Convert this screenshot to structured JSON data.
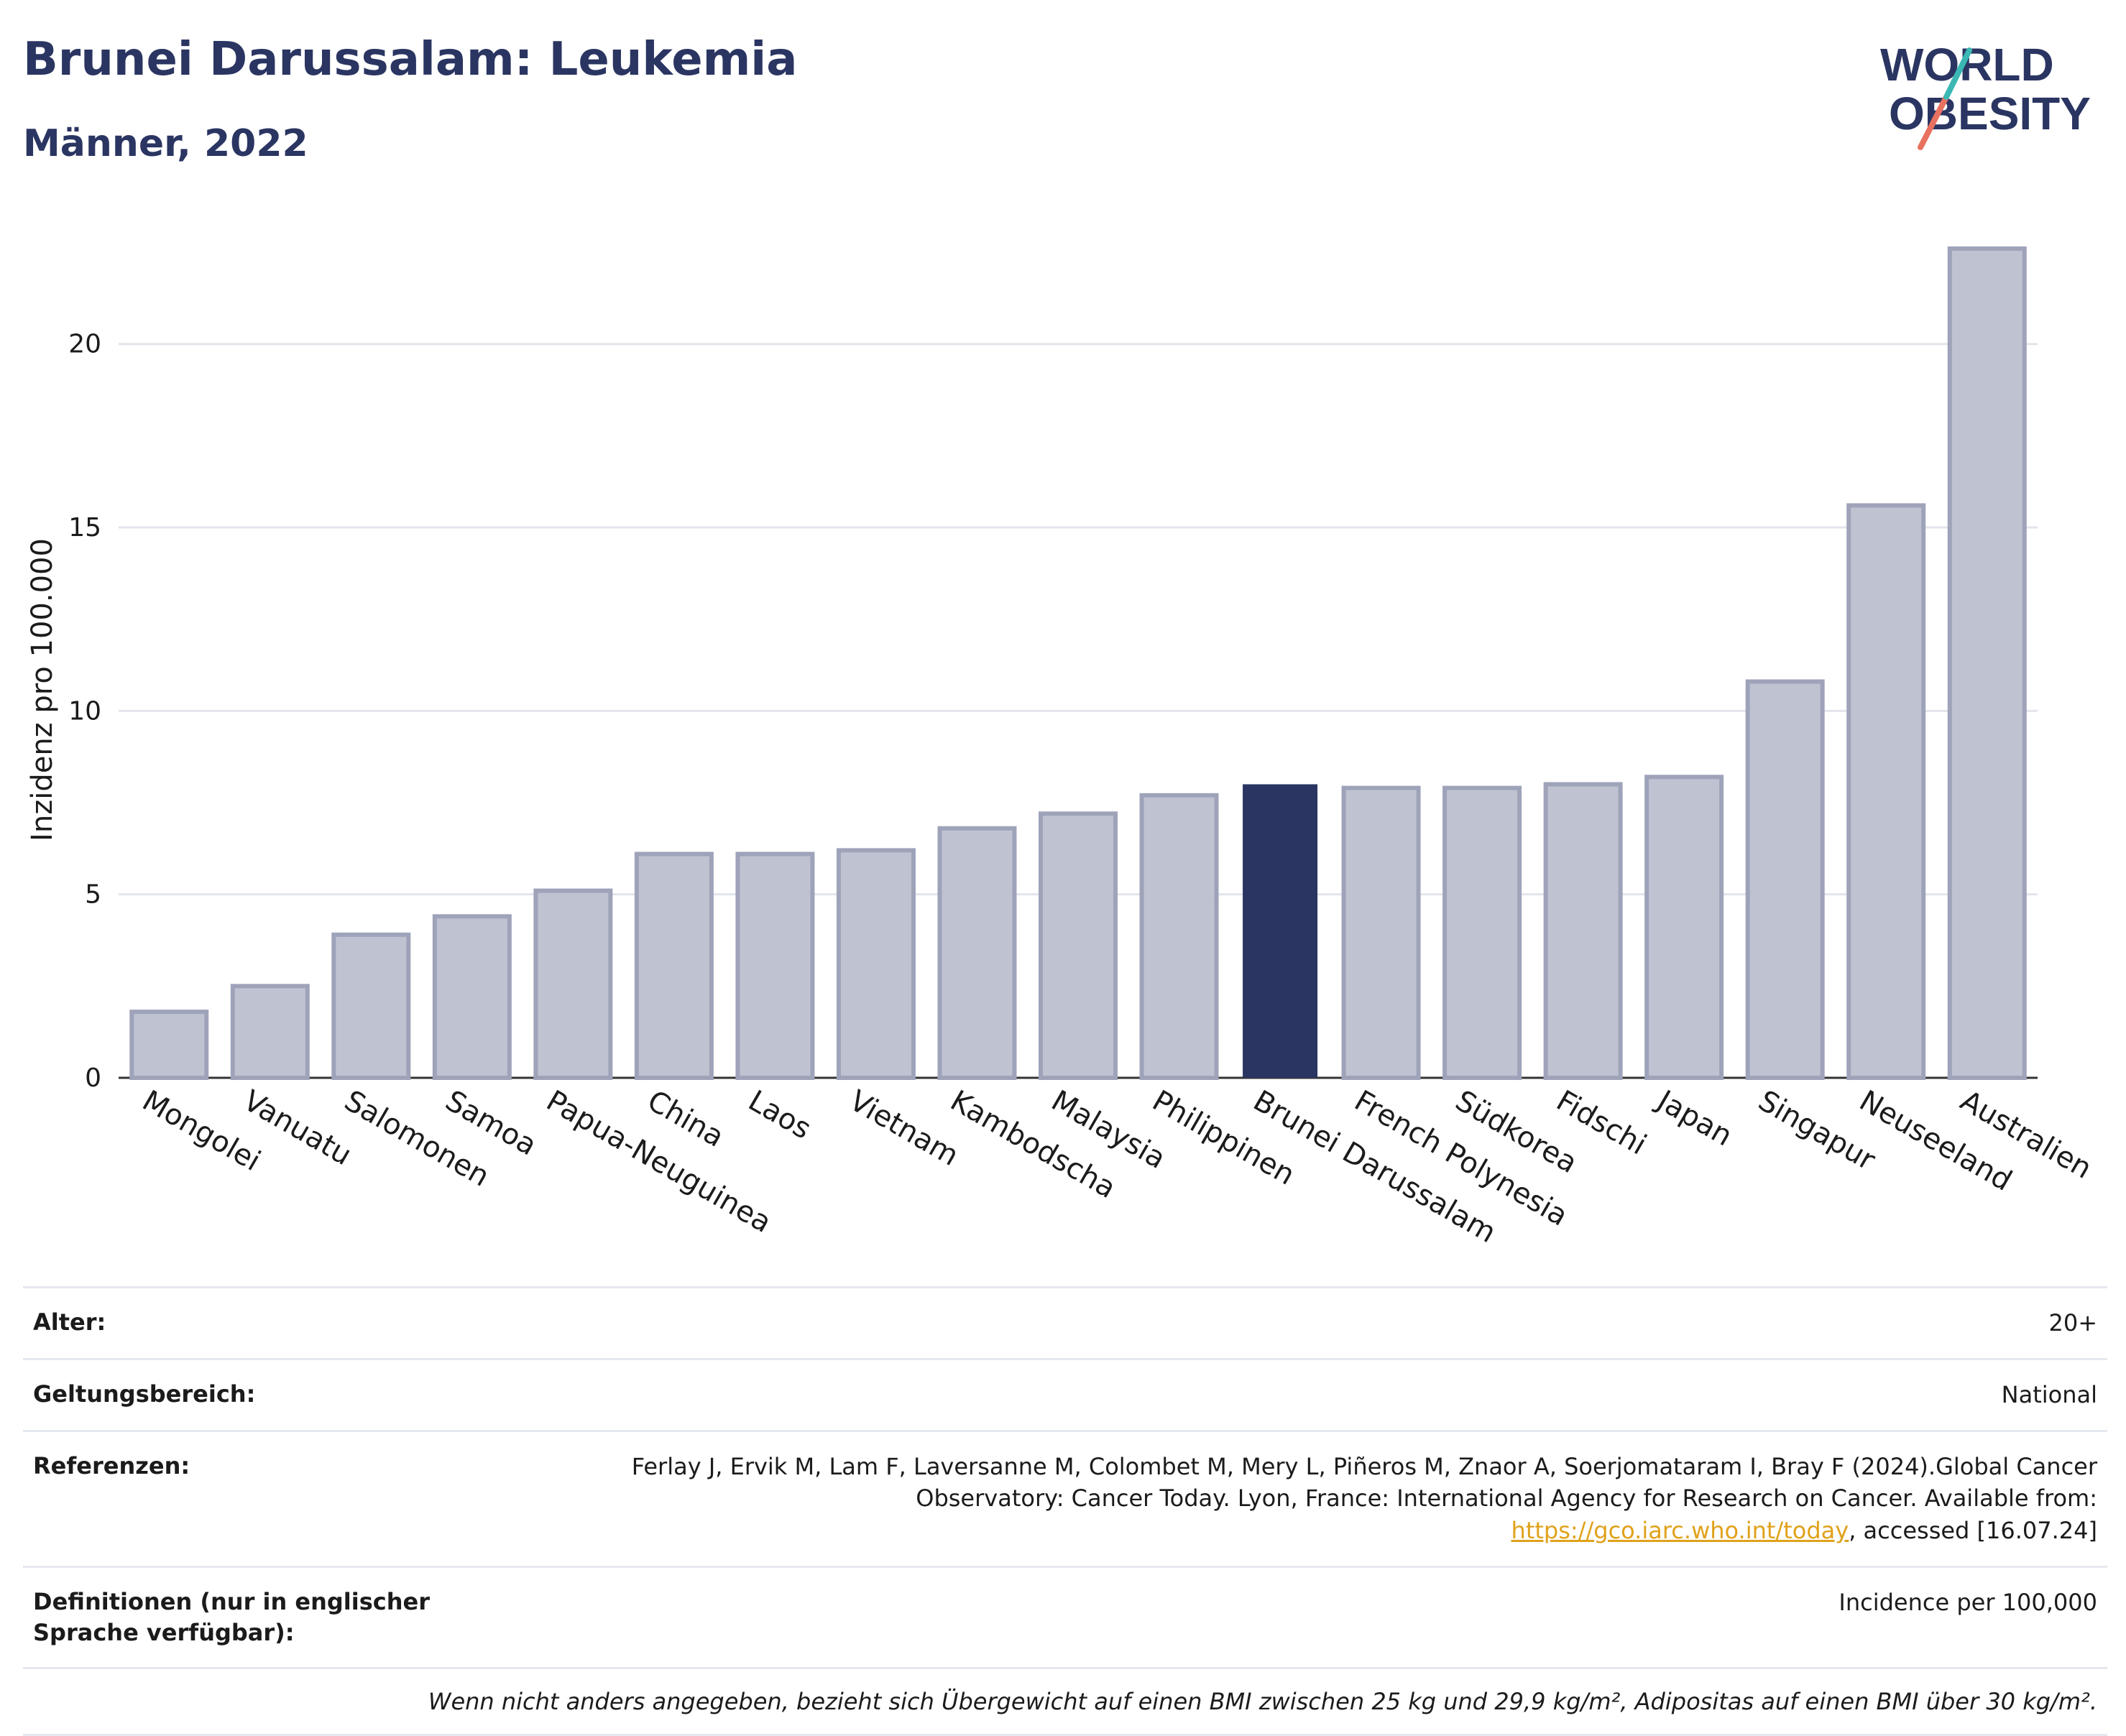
{
  "header": {
    "title": "Brunei Darussalam: Leukemia",
    "subtitle": "Männer, 2022"
  },
  "logo": {
    "line1": "WORLD",
    "line2": "OBESITY"
  },
  "colors": {
    "highlight": "#2b3562",
    "bar_fill": "#bfc3d1",
    "bar_stroke": "#9ea3ba",
    "grid": "#e3e5ec"
  },
  "chart_data": {
    "type": "bar",
    "categories": [
      "Mongolei",
      "Vanuatu",
      "Salomonen",
      "Samoa",
      "Papua-Neuguinea",
      "China",
      "Laos",
      "Vietnam",
      "Kambodscha",
      "Malaysia",
      "Philippinen",
      "Brunei Darussalam",
      "French Polynesia",
      "Südkorea",
      "Fidschi",
      "Japan",
      "Singapur",
      "Neuseeland",
      "Australien"
    ],
    "values": [
      1.8,
      2.5,
      3.9,
      4.4,
      5.1,
      6.1,
      6.1,
      6.2,
      6.8,
      7.2,
      7.7,
      8.0,
      7.9,
      7.9,
      8.0,
      8.2,
      10.8,
      15.6,
      22.6
    ],
    "highlight": "Brunei Darussalam",
    "ylabel": "Inzidenz pro 100.000",
    "ylim": [
      0,
      23.5
    ],
    "yticks": [
      0,
      5,
      10,
      15,
      20
    ],
    "grid": true
  },
  "meta": {
    "age_label": "Alter:",
    "age_value": "20+",
    "scope_label": "Geltungsbereich:",
    "scope_value": "National",
    "ref_label": "Referenzen:",
    "ref_text1": "Ferlay J, Ervik M, Lam F, Laversanne M, Colombet M, Mery L, Piñeros M, Znaor A, Soerjomataram I, Bray F (2024).Global Cancer Observatory: Cancer Today. Lyon, France: International Agency for Research on Cancer. Available from: ",
    "ref_link": "https://gco.iarc.who.int/today",
    "ref_text2": ", accessed [16.07.24]",
    "def_label": "Definitionen (nur in englischer Sprache verfügbar):",
    "def_value": "Incidence per 100,000",
    "footnote": "Wenn nicht anders angegeben, bezieht sich Übergewicht auf einen BMI zwischen 25 kg und 29,9 kg/m², Adipositas auf einen BMI über 30 kg/m²."
  }
}
